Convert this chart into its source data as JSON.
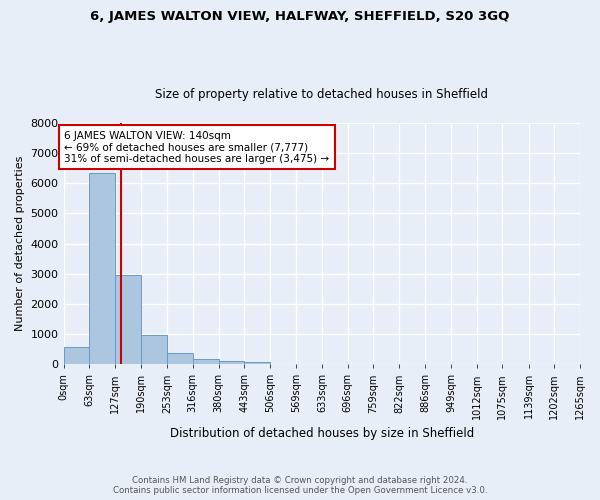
{
  "title": "6, JAMES WALTON VIEW, HALFWAY, SHEFFIELD, S20 3GQ",
  "subtitle": "Size of property relative to detached houses in Sheffield",
  "xlabel": "Distribution of detached houses by size in Sheffield",
  "ylabel": "Number of detached properties",
  "footnote1": "Contains HM Land Registry data © Crown copyright and database right 2024.",
  "footnote2": "Contains public sector information licensed under the Open Government Licence v3.0.",
  "bin_edges": [
    0,
    63,
    127,
    190,
    253,
    316,
    380,
    443,
    506,
    569,
    633,
    696,
    759,
    822,
    886,
    949,
    1012,
    1075,
    1139,
    1202,
    1265
  ],
  "bin_labels": [
    "0sqm",
    "63sqm",
    "127sqm",
    "190sqm",
    "253sqm",
    "316sqm",
    "380sqm",
    "443sqm",
    "506sqm",
    "569sqm",
    "633sqm",
    "696sqm",
    "759sqm",
    "822sqm",
    "886sqm",
    "949sqm",
    "1012sqm",
    "1075sqm",
    "1139sqm",
    "1202sqm",
    "1265sqm"
  ],
  "bar_heights": [
    560,
    6350,
    2950,
    970,
    370,
    160,
    100,
    60,
    0,
    0,
    0,
    0,
    0,
    0,
    0,
    0,
    0,
    0,
    0,
    0
  ],
  "bar_color": "#adc6e0",
  "bar_edgecolor": "#6699cc",
  "property_size": 140,
  "vline_color": "#cc0000",
  "annotation_line1": "6 JAMES WALTON VIEW: 140sqm",
  "annotation_line2": "← 69% of detached houses are smaller (7,777)",
  "annotation_line3": "31% of semi-detached houses are larger (3,475) →",
  "annotation_box_edgecolor": "#cc0000",
  "ylim": [
    0,
    8000
  ],
  "yticks": [
    0,
    1000,
    2000,
    3000,
    4000,
    5000,
    6000,
    7000,
    8000
  ],
  "background_color": "#e8eef8",
  "plot_bg_color": "#e8eef8",
  "grid_color": "#ffffff"
}
